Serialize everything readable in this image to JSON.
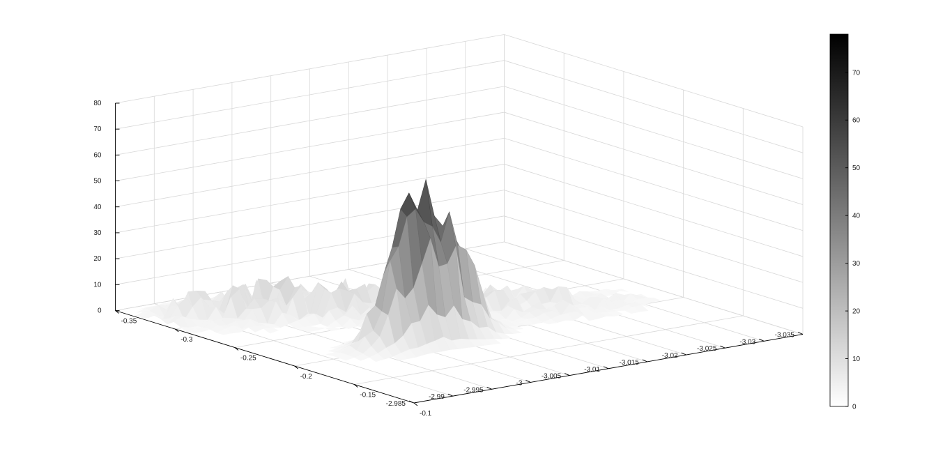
{
  "chart_data": {
    "type": "surface",
    "title": "",
    "xlabel": "",
    "ylabel": "",
    "zlabel": "",
    "colormap": "gray-reversed",
    "colors": {
      "low": "#ffffff",
      "high": "#000000",
      "grid": "#d8d8d8",
      "axis": "#000000"
    },
    "grid": true,
    "x_axis": {
      "range": [
        -3.035,
        -2.985
      ],
      "ticks": [
        -2.985,
        -2.99,
        -2.995,
        -3,
        -3.005,
        -3.01,
        -3.015,
        -3.02,
        -3.025,
        -3.03,
        -3.035
      ],
      "tick_labels": [
        "-2.985",
        "-2.99",
        "-2.995",
        "-3",
        "-3.005",
        "-3.01",
        "-3.015",
        "-3.02",
        "-3.025",
        "-3.03",
        "-3.035"
      ]
    },
    "y_axis": {
      "range": [
        -0.35,
        -0.1
      ],
      "ticks": [
        -0.35,
        -0.3,
        -0.25,
        -0.2,
        -0.15,
        -0.1
      ],
      "tick_labels": [
        "-0.35",
        "-0.3",
        "-0.25",
        "-0.2",
        "-0.15",
        "-0.1"
      ]
    },
    "z_axis": {
      "range": [
        0,
        80
      ],
      "ticks": [
        0,
        10,
        20,
        30,
        40,
        50,
        60,
        70,
        80
      ],
      "tick_labels": [
        "0",
        "10",
        "20",
        "30",
        "40",
        "50",
        "60",
        "70",
        "80"
      ]
    },
    "colorbar": {
      "range": [
        0,
        78
      ],
      "ticks": [
        0,
        10,
        20,
        30,
        40,
        50,
        60,
        70
      ],
      "tick_labels": [
        "0",
        "10",
        "20",
        "30",
        "40",
        "50",
        "60",
        "70"
      ],
      "position": "right"
    },
    "peak": {
      "x": -3.0,
      "y": -0.2,
      "z": 60
    },
    "secondary_peak": {
      "x": -3.005,
      "y": -0.2,
      "z": 43
    },
    "ridge": [
      {
        "x": -2.99,
        "y": -0.315,
        "z": 8
      },
      {
        "x": -2.995,
        "y": -0.3,
        "z": 10
      },
      {
        "x": -3.0,
        "y": -0.285,
        "z": 10
      },
      {
        "x": -3.005,
        "y": -0.27,
        "z": 9
      },
      {
        "x": -3.01,
        "y": -0.255,
        "z": 8
      },
      {
        "x": -3.015,
        "y": -0.24,
        "z": 7
      },
      {
        "x": -3.02,
        "y": -0.225,
        "z": 6
      },
      {
        "x": -3.025,
        "y": -0.21,
        "z": 5
      }
    ]
  }
}
